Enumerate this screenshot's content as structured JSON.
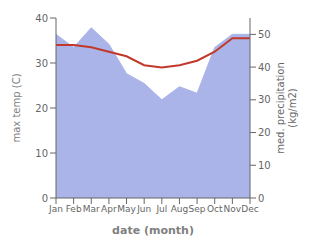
{
  "chart_data": {
    "type": "line",
    "xlabel": "date (month)",
    "ylabel": "max temp (C)",
    "y2label": "med. precipitation\n(kg/m2)",
    "categories": [
      "Jan",
      "Feb",
      "Mar",
      "Apr",
      "May",
      "Jun",
      "Jul",
      "Aug",
      "Sep",
      "Oct",
      "Nov",
      "Dec"
    ],
    "series": [
      {
        "type": "line",
        "color": "#c0392b",
        "values": [
          34.0,
          34.0,
          33.5,
          32.5,
          31.5,
          29.5,
          29.0,
          29.5,
          30.5,
          32.5,
          35.5,
          35.5
        ]
      },
      {
        "type": "area",
        "axis": "y2",
        "color": "#aab4e8",
        "values": [
          50,
          46,
          52,
          47,
          38,
          35,
          30,
          34,
          32,
          46,
          50,
          50
        ]
      }
    ],
    "ylim": [
      0,
      40
    ],
    "yticks": [
      0,
      10,
      20,
      30,
      40
    ],
    "y2lim": [
      0,
      55
    ],
    "y2ticks": [
      0,
      10,
      20,
      30,
      40,
      50
    ],
    "grid": false
  }
}
